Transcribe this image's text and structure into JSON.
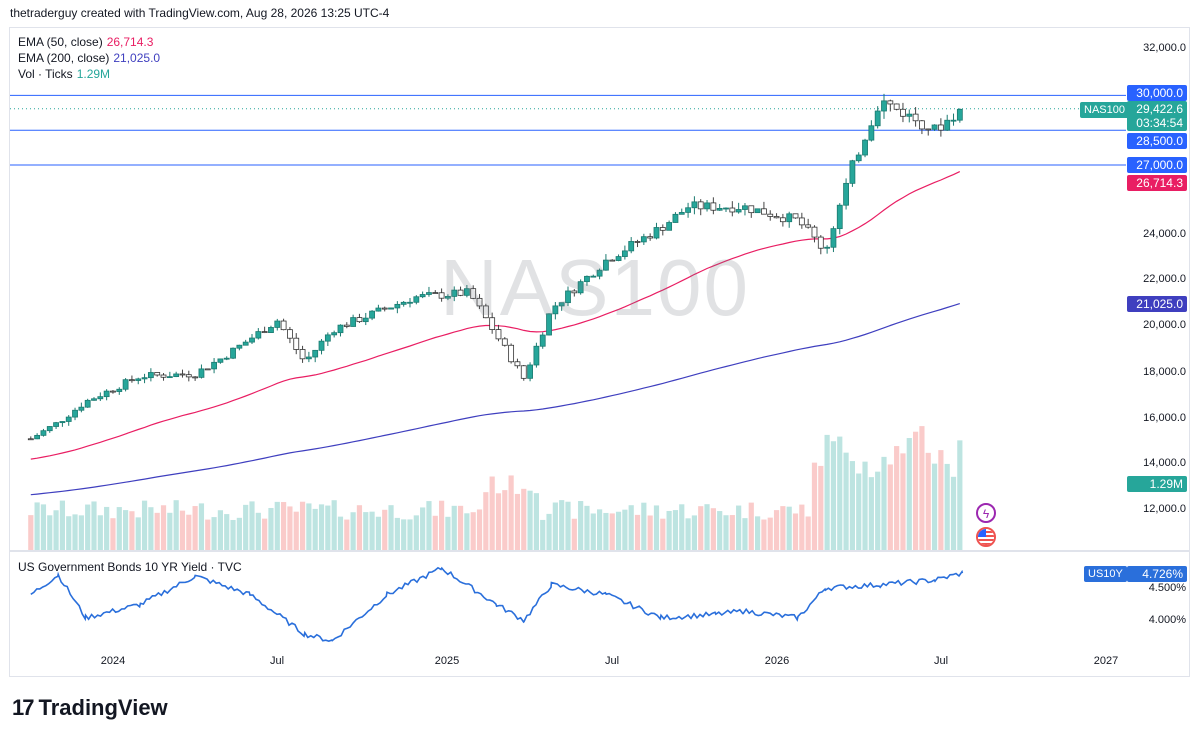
{
  "header": {
    "attribution": "thetraderguy created with TradingView.com, Aug 28, 2026 13:25 UTC-4"
  },
  "symbol": {
    "watermark": "NAS100",
    "tag": "NAS100"
  },
  "legend": {
    "ema50_label": "EMA (50, close)",
    "ema50_value": "26,714.3",
    "ema200_label": "EMA (200, close)",
    "ema200_value": "21,025.0",
    "vol_label": "Vol · Ticks",
    "vol_value": "1.29M"
  },
  "price_badges": {
    "level_30000": "30,000.0",
    "last_price": "29,422.6",
    "countdown": "03:34:54",
    "level_28500": "28,500.0",
    "level_27000": "27,000.0",
    "ema50": "26,714.3",
    "ema200": "21,025.0",
    "volume": "1.29M"
  },
  "y_axis_ticks": [
    "32,000.0",
    "24,000.0",
    "22,000.0",
    "20,000.0",
    "18,000.0",
    "16,000.0",
    "14,000.0",
    "12,000.0"
  ],
  "x_axis_ticks": [
    "2024",
    "Jul",
    "2025",
    "Jul",
    "2026",
    "Jul",
    "2027"
  ],
  "lower_pane": {
    "title": "US Government Bonds 10 YR Yield · TVC",
    "tag": "US10Y",
    "value": "4.726%",
    "ticks": [
      "4.500%",
      "4.000%"
    ]
  },
  "brand": {
    "name": "TradingView"
  },
  "colors": {
    "up": "#26a69a",
    "down": "#ef5350",
    "ema50": "#e91e63",
    "ema200": "#3f3fbf",
    "level": "#2962ff",
    "yield": "#2a6fdb"
  },
  "chart_data": [
    {
      "type": "candlestick",
      "title": "NAS100",
      "interval": "weekly",
      "x_range": [
        "2023-10",
        "2026-08"
      ],
      "ylim": [
        11000,
        33000
      ],
      "horizontal_levels": [
        30000,
        28500,
        27000
      ],
      "series": [
        {
          "name": "EMA (50, close)",
          "last": 26714.3
        },
        {
          "name": "EMA (200, close)",
          "last": 21025.0
        }
      ],
      "anchors": [
        {
          "date": "2023-10",
          "close": 15200
        },
        {
          "date": "2023-11",
          "close": 15900
        },
        {
          "date": "2023-12",
          "close": 16800
        },
        {
          "date": "2024-02",
          "close": 17900
        },
        {
          "date": "2024-04",
          "close": 18000
        },
        {
          "date": "2024-05",
          "close": 18700
        },
        {
          "date": "2024-07",
          "close": 20300
        },
        {
          "date": "2024-08",
          "close": 18500
        },
        {
          "date": "2024-09",
          "close": 19900
        },
        {
          "date": "2024-12",
          "close": 21300
        },
        {
          "date": "2025-02",
          "close": 21500
        },
        {
          "date": "2025-04",
          "close": 17800
        },
        {
          "date": "2025-05",
          "close": 20800
        },
        {
          "date": "2025-07",
          "close": 22900
        },
        {
          "date": "2025-09",
          "close": 24300
        },
        {
          "date": "2025-10",
          "close": 25200
        },
        {
          "date": "2025-12",
          "close": 25200
        },
        {
          "date": "2026-02",
          "close": 24600
        },
        {
          "date": "2026-03",
          "close": 23300
        },
        {
          "date": "2026-04",
          "close": 27000
        },
        {
          "date": "2026-05",
          "close": 29800
        },
        {
          "date": "2026-07",
          "close": 28500
        },
        {
          "date": "2026-08",
          "close": 29422.6
        }
      ],
      "volume_last": "1.29M"
    },
    {
      "type": "line",
      "title": "US Government Bonds 10 YR Yield",
      "ylim": [
        3.7,
        4.9
      ],
      "series": [
        {
          "name": "US10Y",
          "points": [
            {
              "date": "2023-10",
              "y": 4.4
            },
            {
              "date": "2023-11",
              "y": 4.7
            },
            {
              "date": "2023-12",
              "y": 4.05
            },
            {
              "date": "2024-02",
              "y": 4.25
            },
            {
              "date": "2024-04",
              "y": 4.68
            },
            {
              "date": "2024-06",
              "y": 4.4
            },
            {
              "date": "2024-08",
              "y": 3.8
            },
            {
              "date": "2024-09",
              "y": 3.7
            },
            {
              "date": "2024-11",
              "y": 4.4
            },
            {
              "date": "2025-01",
              "y": 4.8
            },
            {
              "date": "2025-03",
              "y": 4.25
            },
            {
              "date": "2025-04",
              "y": 4.01
            },
            {
              "date": "2025-05",
              "y": 4.55
            },
            {
              "date": "2025-07",
              "y": 4.4
            },
            {
              "date": "2025-09",
              "y": 4.05
            },
            {
              "date": "2025-11",
              "y": 4.1
            },
            {
              "date": "2025-12",
              "y": 4.15
            },
            {
              "date": "2026-02",
              "y": 4.05
            },
            {
              "date": "2026-03",
              "y": 4.5
            },
            {
              "date": "2026-05",
              "y": 4.55
            },
            {
              "date": "2026-07",
              "y": 4.62
            },
            {
              "date": "2026-08",
              "y": 4.726
            }
          ]
        }
      ]
    }
  ]
}
